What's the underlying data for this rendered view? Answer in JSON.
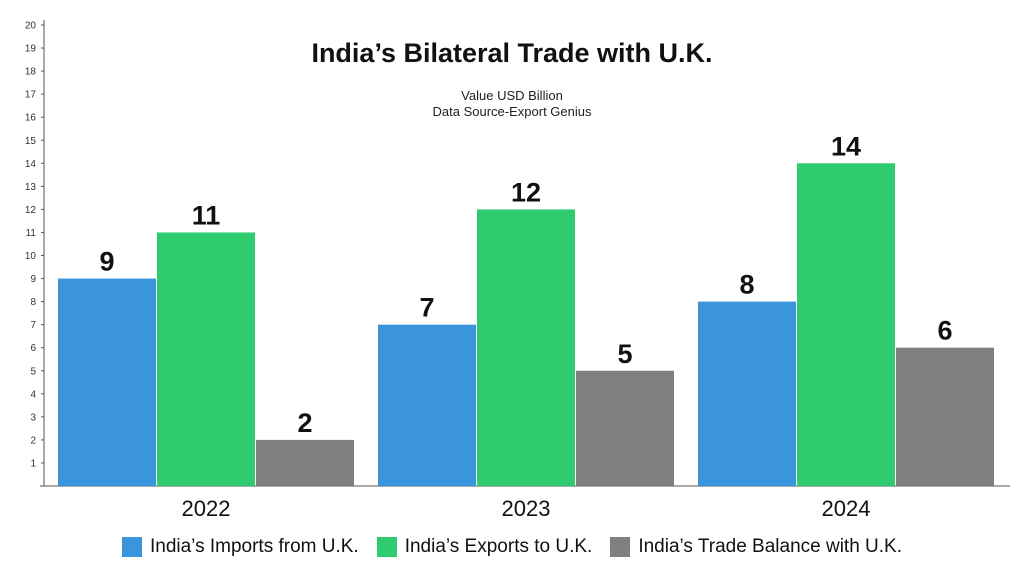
{
  "chart_data": {
    "type": "bar",
    "title": "India’s Bilateral Trade with U.K.",
    "subtitle_lines": [
      "Value USD Billion",
      "Data Source-Export Genius"
    ],
    "categories": [
      "2022",
      "2023",
      "2024"
    ],
    "series": [
      {
        "name": "India’s Imports from U.K.",
        "color": "#3a95dc",
        "values": [
          9,
          7,
          8
        ]
      },
      {
        "name": "India’s Exports to U.K.",
        "color": "#2ecc6e",
        "values": [
          11,
          12,
          14
        ]
      },
      {
        "name": "India’s Trade Balance with U.K.",
        "color": "#808080",
        "values": [
          2,
          5,
          6
        ]
      }
    ],
    "ylim": [
      0,
      20
    ],
    "yticks": [
      1,
      2,
      3,
      4,
      5,
      6,
      7,
      8,
      9,
      10,
      11,
      12,
      13,
      14,
      15,
      16,
      17,
      18,
      19,
      20
    ],
    "grid": false,
    "legend": "bottom"
  }
}
